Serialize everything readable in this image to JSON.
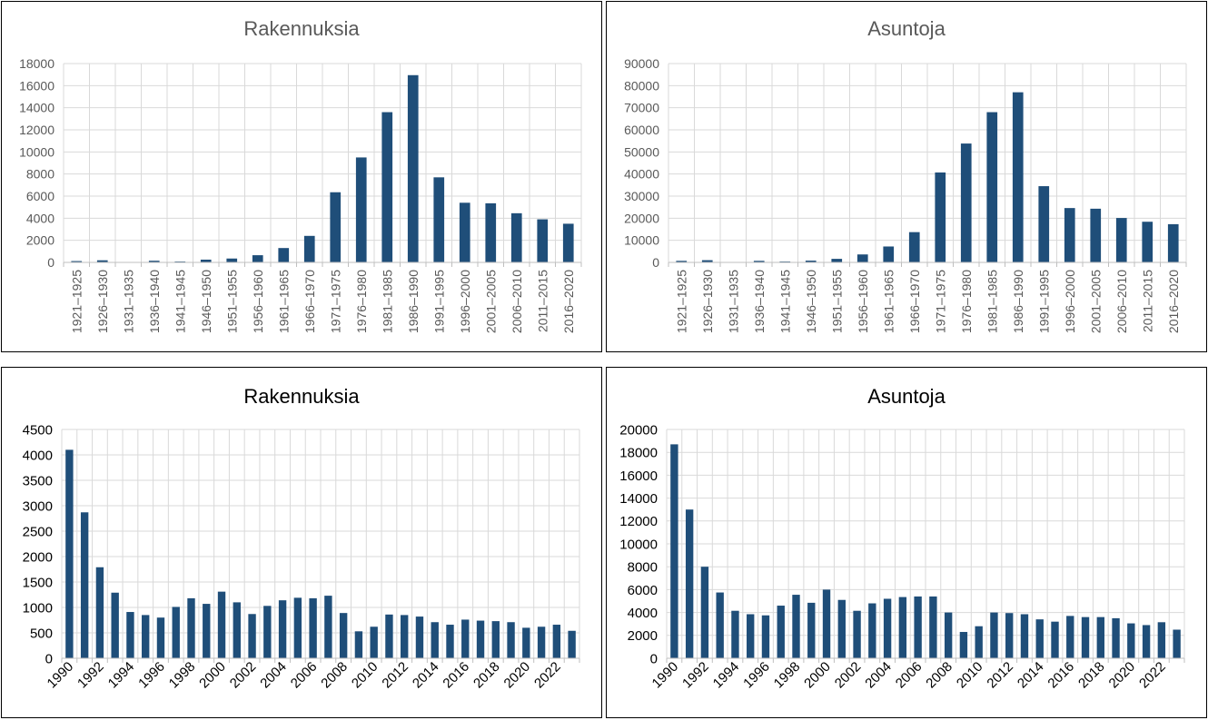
{
  "colors": {
    "bar": "#1f4e79",
    "grid": "#d9d9d9",
    "axis": "#bfbfbf",
    "tick_text_top": "#595959",
    "tick_text_bottom": "#000000"
  },
  "chart_data": [
    {
      "type": "bar",
      "title": "Rakennuksia",
      "categories": [
        "1921–1925",
        "1926–1930",
        "1931–1935",
        "1936–1940",
        "1941–1945",
        "1946–1950",
        "1951–1955",
        "1956–1960",
        "1961–1965",
        "1966–1970",
        "1971–1975",
        "1976–1980",
        "1981–1985",
        "1986–1990",
        "1991–1995",
        "1996–2000",
        "2001–2005",
        "2006–2010",
        "2011–2015",
        "2016–2020"
      ],
      "values": [
        120,
        190,
        30,
        150,
        80,
        250,
        350,
        650,
        1300,
        2400,
        6350,
        9500,
        13600,
        16950,
        7700,
        5400,
        5350,
        4450,
        3900,
        3500
      ],
      "yticks": [
        0,
        2000,
        4000,
        6000,
        8000,
        10000,
        12000,
        14000,
        16000,
        18000
      ],
      "ylim": [
        0,
        18000
      ],
      "xlabel": "",
      "ylabel": ""
    },
    {
      "type": "bar",
      "title": "Asuntoja",
      "categories": [
        "1921–1925",
        "1926–1930",
        "1931–1935",
        "1936–1940",
        "1941–1945",
        "1946–1950",
        "1951–1955",
        "1956–1960",
        "1961–1965",
        "1966–1970",
        "1971–1975",
        "1976–1980",
        "1981–1985",
        "1986–1990",
        "1991–1995",
        "1996–2000",
        "2001–2005",
        "2006–2010",
        "2011–2015",
        "2016–2020"
      ],
      "values": [
        700,
        1000,
        200,
        700,
        400,
        800,
        1600,
        3600,
        7200,
        13700,
        40700,
        53800,
        68000,
        77000,
        34500,
        24600,
        24300,
        20100,
        18400,
        17300
      ],
      "yticks": [
        0,
        10000,
        20000,
        30000,
        40000,
        50000,
        60000,
        70000,
        80000,
        90000
      ],
      "ylim": [
        0,
        90000
      ],
      "xlabel": "",
      "ylabel": ""
    },
    {
      "type": "bar",
      "title": "Rakennuksia",
      "categories": [
        "1990",
        "1991",
        "1992",
        "1993",
        "1994",
        "1995",
        "1996",
        "1997",
        "1998",
        "1999",
        "2000",
        "2001",
        "2002",
        "2003",
        "2004",
        "2005",
        "2006",
        "2007",
        "2008",
        "2009",
        "2010",
        "2011",
        "2012",
        "2013",
        "2014",
        "2015",
        "2016",
        "2017",
        "2018",
        "2019",
        "2020",
        "2021",
        "2022",
        "2023"
      ],
      "values": [
        4100,
        2870,
        1790,
        1290,
        910,
        850,
        800,
        1010,
        1180,
        1070,
        1310,
        1100,
        870,
        1030,
        1140,
        1190,
        1180,
        1230,
        890,
        530,
        620,
        860,
        850,
        820,
        710,
        660,
        760,
        740,
        730,
        710,
        600,
        620,
        660,
        540
      ],
      "tick_labels": [
        "1990",
        "",
        "1992",
        "",
        "1994",
        "",
        "1996",
        "",
        "1998",
        "",
        "2000",
        "",
        "2002",
        "",
        "2004",
        "",
        "2006",
        "",
        "2008",
        "",
        "2010",
        "",
        "2012",
        "",
        "2014",
        "",
        "2016",
        "",
        "2018",
        "",
        "2020",
        "",
        "2022",
        ""
      ],
      "yticks": [
        0,
        500,
        1000,
        1500,
        2000,
        2500,
        3000,
        3500,
        4000,
        4500
      ],
      "ylim": [
        0,
        4500
      ],
      "xlabel": "",
      "ylabel": ""
    },
    {
      "type": "bar",
      "title": "Asuntoja",
      "categories": [
        "1990",
        "1991",
        "1992",
        "1993",
        "1994",
        "1995",
        "1996",
        "1997",
        "1998",
        "1999",
        "2000",
        "2001",
        "2002",
        "2003",
        "2004",
        "2005",
        "2006",
        "2007",
        "2008",
        "2009",
        "2010",
        "2011",
        "2012",
        "2013",
        "2014",
        "2015",
        "2016",
        "2017",
        "2018",
        "2019",
        "2020",
        "2021",
        "2022",
        "2023"
      ],
      "values": [
        18700,
        13000,
        8000,
        5750,
        4150,
        3850,
        3750,
        4600,
        5550,
        4850,
        6000,
        5100,
        4150,
        4800,
        5200,
        5350,
        5400,
        5400,
        4000,
        2300,
        2800,
        4000,
        3950,
        3850,
        3400,
        3200,
        3700,
        3600,
        3600,
        3500,
        3050,
        2900,
        3150,
        2500
      ],
      "tick_labels": [
        "1990",
        "",
        "1992",
        "",
        "1994",
        "",
        "1996",
        "",
        "1998",
        "",
        "2000",
        "",
        "2002",
        "",
        "2004",
        "",
        "2006",
        "",
        "2008",
        "",
        "2010",
        "",
        "2012",
        "",
        "2014",
        "",
        "2016",
        "",
        "2018",
        "",
        "2020",
        "",
        "2022",
        ""
      ],
      "yticks": [
        0,
        2000,
        4000,
        6000,
        8000,
        10000,
        12000,
        14000,
        16000,
        18000,
        20000
      ],
      "ylim": [
        0,
        20000
      ],
      "xlabel": "",
      "ylabel": ""
    }
  ]
}
